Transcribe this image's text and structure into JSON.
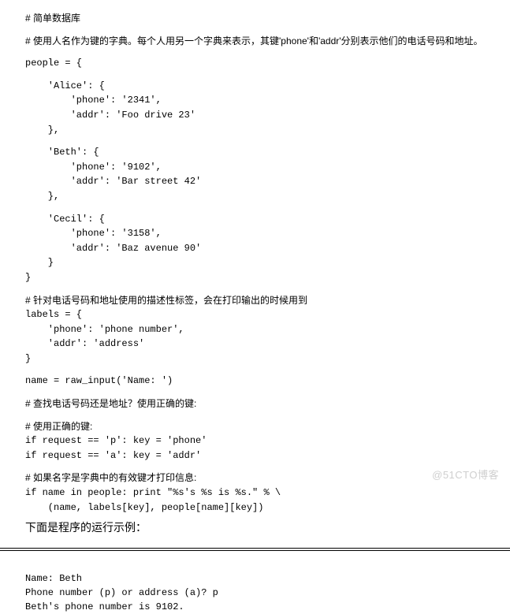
{
  "comments": {
    "c1": "# 简单数据库",
    "c2": "# 使用人名作为键的字典。每个人用另一个字典来表示，其键'phone'和'addr'分别表示他们的电话号码和地址。",
    "c3": "# 针对电话号码和地址使用的描述性标签，会在打印输出的时候用到",
    "c4": "# 查找电话号码还是地址？使用正确的键:",
    "c5": "# 使用正确的键:",
    "c6": "# 如果名字是字典中的有效键才打印信息:"
  },
  "code": {
    "people_open": "people = {",
    "alice": "    'Alice': {\n        'phone': '2341',\n        'addr': 'Foo drive 23'\n    },",
    "beth": "    'Beth': {\n        'phone': '9102',\n        'addr': 'Bar street 42'\n    },",
    "cecil": "    'Cecil': {\n        'phone': '3158',\n        'addr': 'Baz avenue 90'\n    }\n}",
    "labels": "labels = {\n    'phone': 'phone number',\n    'addr': 'address'\n}",
    "name_input": "name = raw_input('Name: ')",
    "if_p": "if request == 'p': key = 'phone'",
    "if_a": "if request == 'a': key = 'addr'",
    "print_stmt": "if name in people: print \"%s's %s is %s.\" % \\\n    (name, labels[key], people[name][key])"
  },
  "section_title": "下面是程序的运行示例：",
  "output": {
    "line1": "Name: Beth",
    "line2": "Phone number (p) or address (a)? p",
    "line3": "Beth's phone number is 9102."
  },
  "watermark": "@51CTO博客"
}
